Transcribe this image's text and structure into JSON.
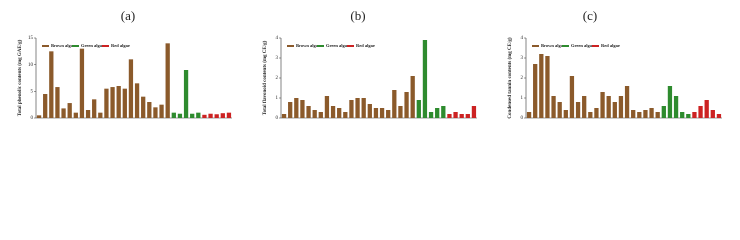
{
  "chart_data": [
    {
      "type": "bar",
      "title": "(a)",
      "ylabel": "Total phenolic contents (mg GAE/g)",
      "categories": [
        null,
        null,
        null,
        null,
        null,
        null,
        null,
        null,
        null,
        null,
        null,
        null,
        null,
        null,
        null,
        null,
        null,
        null,
        null,
        null,
        null,
        null,
        null,
        null,
        null,
        null,
        null,
        null,
        null,
        null,
        null,
        null
      ],
      "series": [
        {
          "name": "Brown algae",
          "color": "#8b5a2b",
          "values": [
            0.5,
            4.5,
            12.5,
            5.8,
            1.8,
            2.8,
            1,
            13,
            1.5,
            3.5,
            1,
            5.5,
            5.8,
            6,
            5.5,
            11,
            6.5,
            4,
            3,
            2,
            2.5,
            14,
            null,
            null,
            null,
            null,
            null,
            null,
            null,
            null,
            null,
            null
          ]
        },
        {
          "name": "Green algae",
          "color": "#2e8b2e",
          "values": [
            null,
            null,
            null,
            null,
            null,
            null,
            null,
            null,
            null,
            null,
            null,
            null,
            null,
            null,
            null,
            null,
            null,
            null,
            null,
            null,
            null,
            null,
            1,
            0.8,
            9,
            0.8,
            1,
            null,
            null,
            null,
            null,
            null
          ]
        },
        {
          "name": "Red algae",
          "color": "#cc2222",
          "values": [
            null,
            null,
            null,
            null,
            null,
            null,
            null,
            null,
            null,
            null,
            null,
            null,
            null,
            null,
            null,
            null,
            null,
            null,
            null,
            null,
            null,
            null,
            null,
            null,
            null,
            null,
            null,
            0.6,
            0.8,
            0.7,
            0.9,
            1
          ]
        }
      ],
      "ylim": [
        0,
        15
      ],
      "yticks": [
        0,
        5,
        10,
        15
      ]
    },
    {
      "type": "bar",
      "title": "(b)",
      "ylabel": "Total flavonoid contents (mg CE/g)",
      "categories": [
        null,
        null,
        null,
        null,
        null,
        null,
        null,
        null,
        null,
        null,
        null,
        null,
        null,
        null,
        null,
        null,
        null,
        null,
        null,
        null,
        null,
        null,
        null,
        null,
        null,
        null,
        null,
        null,
        null,
        null,
        null,
        null
      ],
      "series": [
        {
          "name": "Brown algae",
          "color": "#8b5a2b",
          "values": [
            0.2,
            0.8,
            1,
            0.9,
            0.6,
            0.4,
            0.3,
            1.1,
            0.6,
            0.5,
            0.3,
            0.9,
            1,
            1,
            0.7,
            0.5,
            0.5,
            0.4,
            1.4,
            0.6,
            1.3,
            2.1,
            null,
            null,
            null,
            null,
            null,
            null,
            null,
            null,
            null,
            null
          ]
        },
        {
          "name": "Green algae",
          "color": "#2e8b2e",
          "values": [
            null,
            null,
            null,
            null,
            null,
            null,
            null,
            null,
            null,
            null,
            null,
            null,
            null,
            null,
            null,
            null,
            null,
            null,
            null,
            null,
            null,
            null,
            0.9,
            3.9,
            0.3,
            0.5,
            0.6,
            null,
            null,
            null,
            null,
            null
          ]
        },
        {
          "name": "Red algae",
          "color": "#cc2222",
          "values": [
            null,
            null,
            null,
            null,
            null,
            null,
            null,
            null,
            null,
            null,
            null,
            null,
            null,
            null,
            null,
            null,
            null,
            null,
            null,
            null,
            null,
            null,
            null,
            null,
            null,
            null,
            null,
            0.2,
            0.3,
            0.2,
            0.2,
            0.6
          ]
        }
      ],
      "ylim": [
        0,
        4
      ],
      "yticks": [
        0,
        1,
        2,
        3,
        4
      ]
    },
    {
      "type": "bar",
      "title": "(c)",
      "ylabel": "Condensed tannin contents (mg CE/g)",
      "categories": [
        null,
        null,
        null,
        null,
        null,
        null,
        null,
        null,
        null,
        null,
        null,
        null,
        null,
        null,
        null,
        null,
        null,
        null,
        null,
        null,
        null,
        null,
        null,
        null,
        null,
        null,
        null,
        null,
        null,
        null,
        null,
        null
      ],
      "series": [
        {
          "name": "Brown algae",
          "color": "#8b5a2b",
          "values": [
            0.3,
            2.7,
            3.2,
            3.1,
            1.1,
            0.8,
            0.4,
            2.1,
            0.8,
            1.1,
            0.3,
            0.5,
            1.3,
            1.1,
            0.8,
            1.1,
            1.6,
            0.4,
            0.3,
            0.4,
            0.5,
            0.3,
            null,
            null,
            null,
            null,
            null,
            null,
            null,
            null,
            null,
            null
          ]
        },
        {
          "name": "Green algae",
          "color": "#2e8b2e",
          "values": [
            null,
            null,
            null,
            null,
            null,
            null,
            null,
            null,
            null,
            null,
            null,
            null,
            null,
            null,
            null,
            null,
            null,
            null,
            null,
            null,
            null,
            null,
            0.6,
            1.6,
            1.1,
            0.3,
            0.2,
            null,
            null,
            null,
            null,
            null
          ]
        },
        {
          "name": "Red algae",
          "color": "#cc2222",
          "values": [
            null,
            null,
            null,
            null,
            null,
            null,
            null,
            null,
            null,
            null,
            null,
            null,
            null,
            null,
            null,
            null,
            null,
            null,
            null,
            null,
            null,
            null,
            null,
            null,
            null,
            null,
            null,
            0.3,
            0.6,
            0.9,
            0.4,
            0.2
          ]
        }
      ],
      "ylim": [
        0,
        4
      ],
      "yticks": [
        0,
        1,
        2,
        3,
        4
      ]
    }
  ]
}
